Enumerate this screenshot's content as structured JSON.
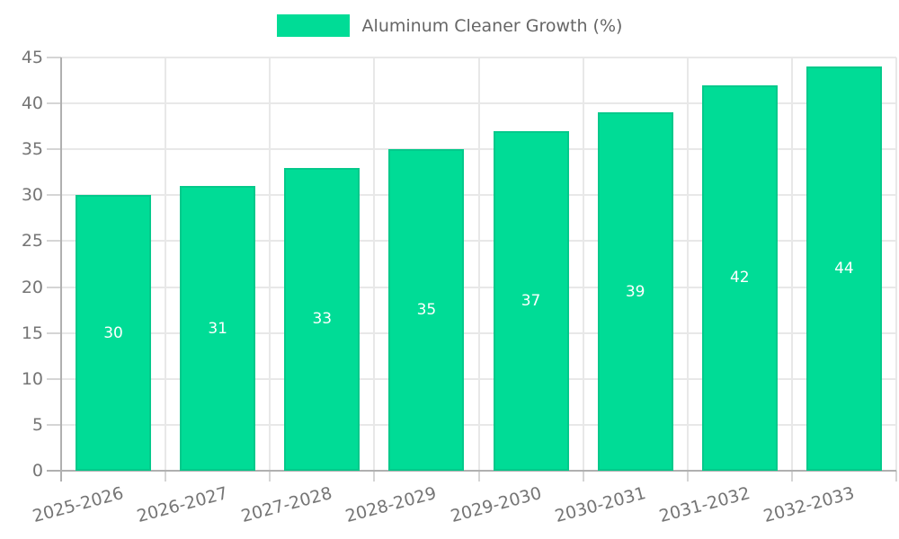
{
  "legend": {
    "label": "Aluminum Cleaner Growth (%)"
  },
  "chart_data": {
    "type": "bar",
    "title": "Aluminum Cleaner Growth (%)",
    "categories": [
      "2025-2026",
      "2026-2027",
      "2027-2028",
      "2028-2029",
      "2029-2030",
      "2030-2031",
      "2031-2032",
      "2032-2033"
    ],
    "values": [
      30,
      31,
      33,
      35,
      37,
      39,
      42,
      44
    ],
    "xlabel": "",
    "ylabel": "",
    "ylim": [
      0,
      45
    ],
    "yticks": [
      0,
      5,
      10,
      15,
      20,
      25,
      30,
      35,
      40,
      45
    ],
    "grid": true,
    "legend_position": "top",
    "value_labels": "centered-inside-bars",
    "x_label_rotation_deg": -15,
    "colors": {
      "bar_fill": "#00DC96",
      "bar_edge": "#04C98B",
      "value_label": "#ffffff",
      "axis_text": "#757575",
      "legend_text": "#666666",
      "grid_line": "#e8e8e8",
      "axis_line": "#b0b0b0",
      "tick_mark": "#d5d5d5",
      "background": "#ffffff"
    }
  }
}
